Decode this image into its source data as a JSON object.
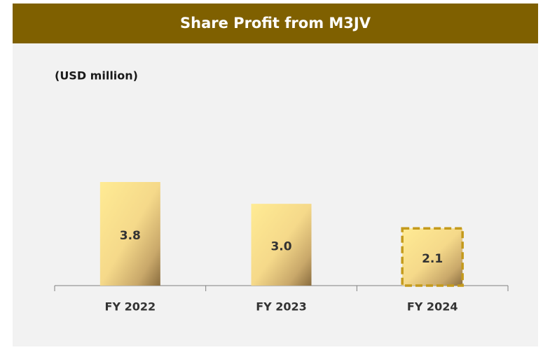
{
  "chart_data": {
    "type": "bar",
    "title": "Share Profit from M3JV",
    "y_label": "(USD million)",
    "categories": [
      "FY 2022",
      "FY 2023",
      "FY 2024"
    ],
    "values": [
      3.8,
      3.0,
      2.1
    ],
    "value_labels": [
      "3.8",
      "3.0",
      "2.1"
    ],
    "highlight": "FY 2024",
    "color": "#7f6000"
  }
}
